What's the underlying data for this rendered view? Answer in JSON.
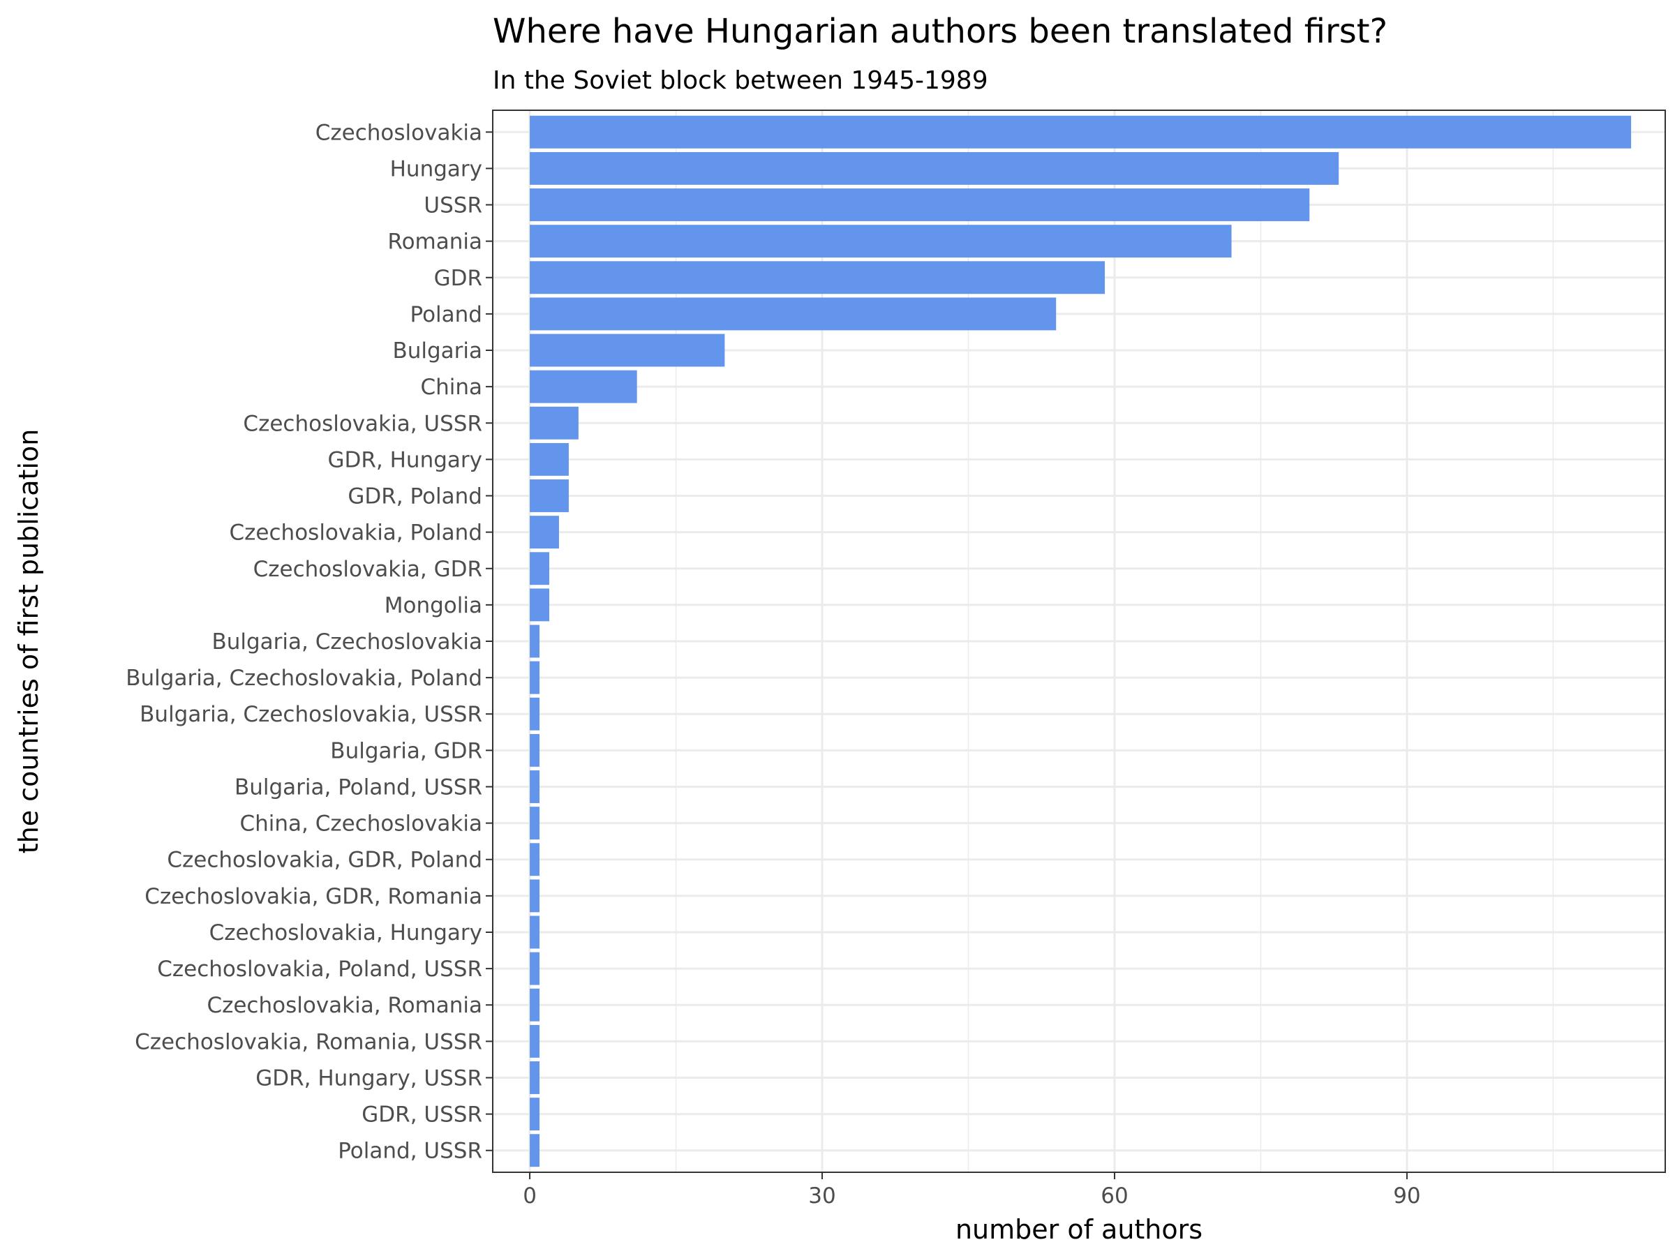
{
  "chart_data": {
    "type": "bar",
    "orientation": "horizontal",
    "title": "Where have Hungarian authors been translated first?",
    "subtitle": "In the Soviet block between 1945-1989",
    "xlabel": "number of authors",
    "ylabel": "the countries of first publication",
    "xlim": [
      -3.8,
      116.5
    ],
    "xticks": [
      0,
      30,
      60,
      90
    ],
    "bar_color": "#6495ed",
    "grid": true,
    "categories": [
      "Czechoslovakia",
      "Hungary",
      "USSR",
      "Romania",
      "GDR",
      "Poland",
      "Bulgaria",
      "China",
      "Czechoslovakia, USSR",
      "GDR, Hungary",
      "GDR, Poland",
      "Czechoslovakia, Poland",
      "Czechoslovakia, GDR",
      "Mongolia",
      "Bulgaria, Czechoslovakia",
      "Bulgaria, Czechoslovakia, Poland",
      "Bulgaria, Czechoslovakia, USSR",
      "Bulgaria, GDR",
      "Bulgaria, Poland, USSR",
      "China, Czechoslovakia",
      "Czechoslovakia, GDR, Poland",
      "Czechoslovakia, GDR, Romania",
      "Czechoslovakia, Hungary",
      "Czechoslovakia, Poland, USSR",
      "Czechoslovakia, Romania",
      "Czechoslovakia, Romania, USSR",
      "GDR, Hungary, USSR",
      "GDR, USSR",
      "Poland, USSR"
    ],
    "values": [
      113,
      83,
      80,
      72,
      59,
      54,
      20,
      11,
      5,
      4,
      4,
      3,
      2,
      2,
      1,
      1,
      1,
      1,
      1,
      1,
      1,
      1,
      1,
      1,
      1,
      1,
      1,
      1,
      1
    ]
  }
}
